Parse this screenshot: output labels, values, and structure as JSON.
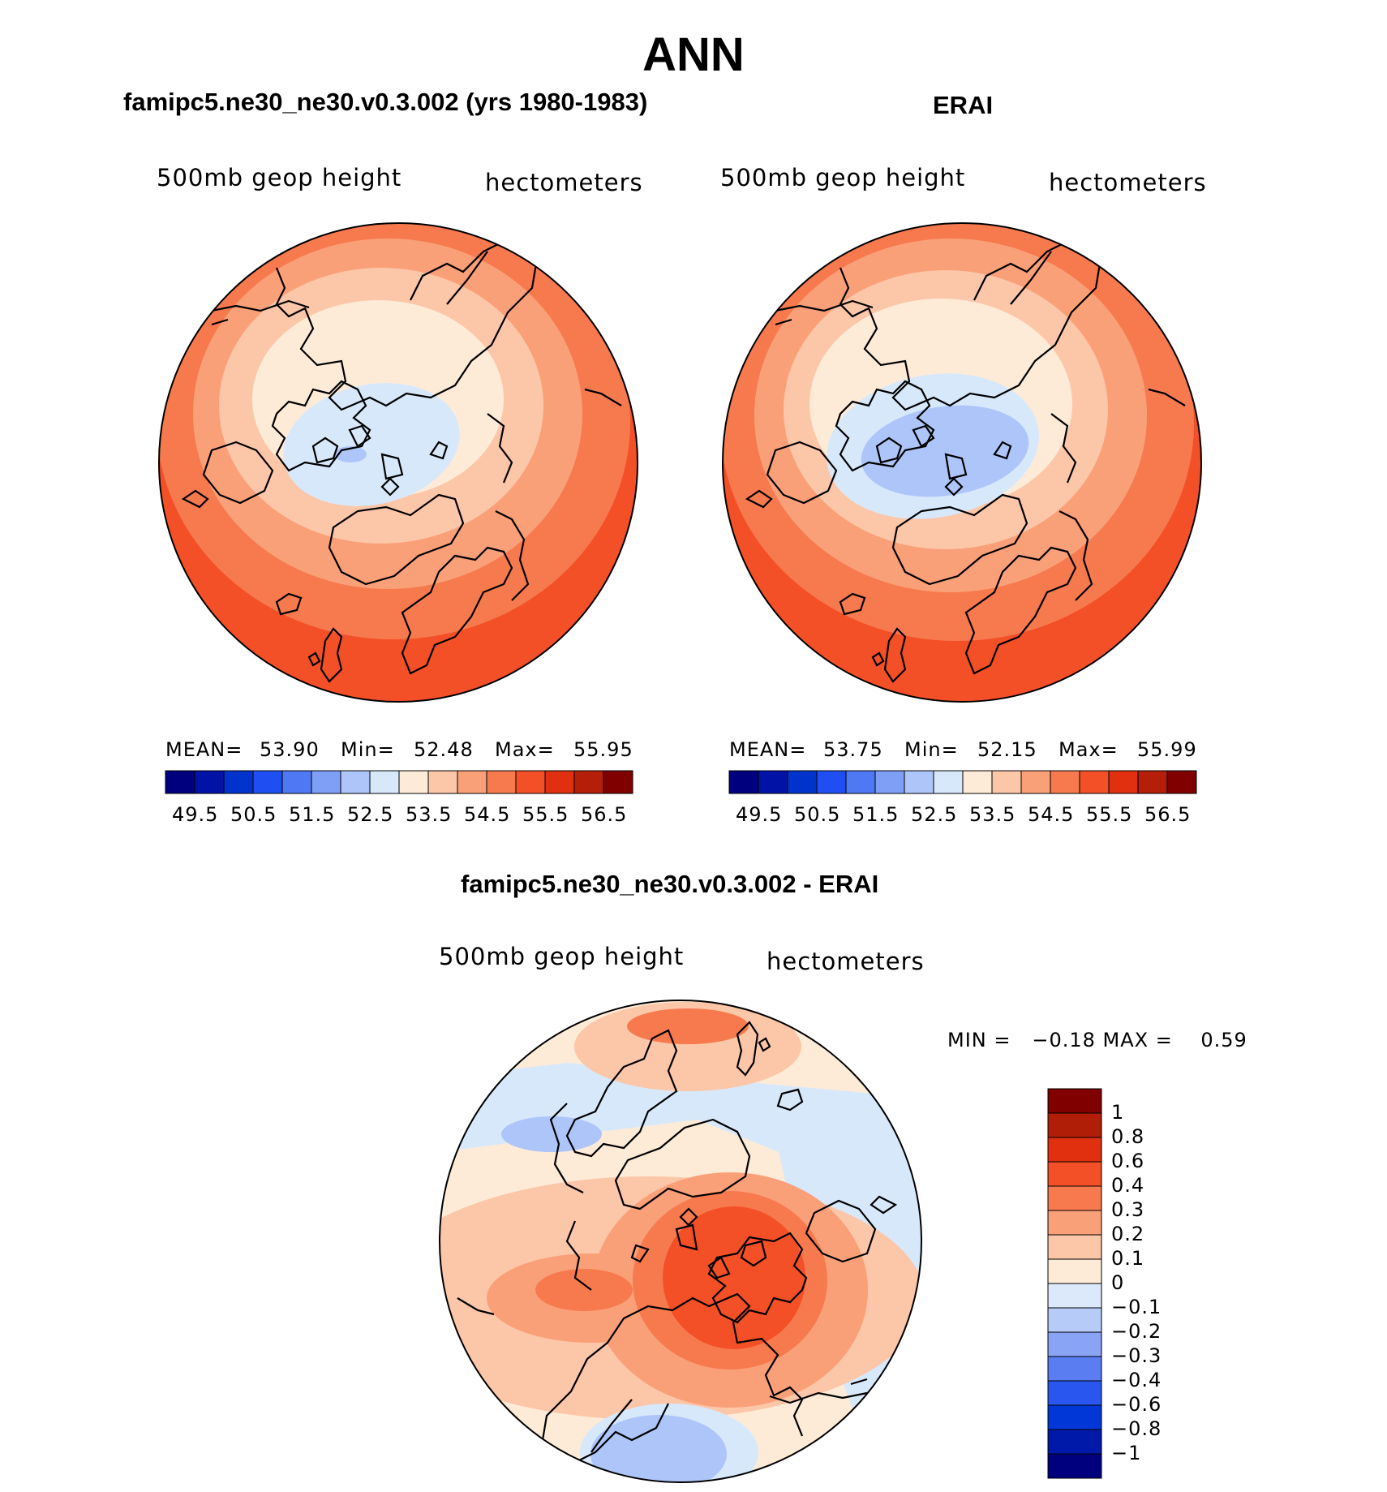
{
  "main_title": "ANN",
  "colors": {
    "abs_fill": [
      "#00007f",
      "#0013a6",
      "#0033cc",
      "#1f4ff2",
      "#4f78f5",
      "#7f9ff7",
      "#aec5f9",
      "#d8e8fb",
      "#fdebd8",
      "#fcc6a8",
      "#faa079",
      "#f77a4f",
      "#f45028",
      "#e03010",
      "#b51e08",
      "#800000"
    ],
    "diff_fill": [
      "#00007f",
      "#0019a8",
      "#0037d6",
      "#2a56f0",
      "#5a7df2",
      "#8aa4f5",
      "#b6cbf8",
      "#dbe9fb",
      "#fdebd8",
      "#fcc6a8",
      "#faa079",
      "#f77a4f",
      "#f45028",
      "#e03010",
      "#b01e08",
      "#800000"
    ]
  },
  "panels": [
    {
      "title": "famipc5.ne30_ne30.v0.3.002 (yrs 1980-1983)",
      "variable": "500mb geop height",
      "units": "hectometers",
      "stats": {
        "mean_label": "MEAN=",
        "mean": "53.90",
        "min_label": "Min=",
        "min": "52.48",
        "max_label": "Max=",
        "max": "55.95"
      },
      "colorbar_ticks": [
        "49.5",
        "50.5",
        "51.5",
        "52.5",
        "53.5",
        "54.5",
        "55.5",
        "56.5"
      ]
    },
    {
      "title": "ERAI",
      "variable": "500mb geop height",
      "units": "hectometers",
      "stats": {
        "mean_label": "MEAN=",
        "mean": "53.75",
        "min_label": "Min=",
        "min": "52.15",
        "max_label": "Max=",
        "max": "55.99"
      },
      "colorbar_ticks": [
        "49.5",
        "50.5",
        "51.5",
        "52.5",
        "53.5",
        "54.5",
        "55.5",
        "56.5"
      ]
    }
  ],
  "difference": {
    "title": "famipc5.ne30_ne30.v0.3.002 - ERAI",
    "variable": "500mb geop height",
    "units": "hectometers",
    "minmax_text": "MIN =   −0.18 MAX =    0.59",
    "colorbar_ticks": [
      "1",
      "0.8",
      "0.6",
      "0.4",
      "0.3",
      "0.2",
      "0.1",
      "0",
      "−0.1",
      "−0.2",
      "−0.3",
      "−0.4",
      "−0.6",
      "−0.8",
      "−1"
    ]
  }
}
